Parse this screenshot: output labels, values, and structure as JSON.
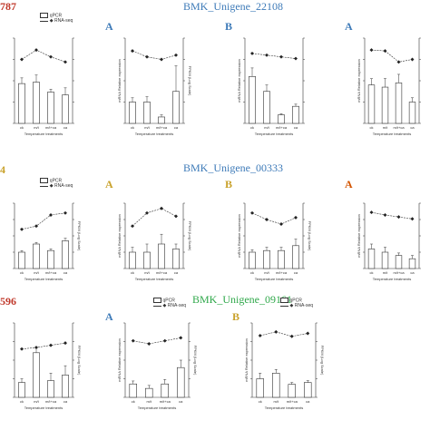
{
  "header": {
    "row1": {
      "left_fragment": "787",
      "gene": "BMK_Unigene_22108"
    },
    "row2": {
      "left_fragment": "4",
      "gene": "BMK_Unigene_00333"
    },
    "row3": {
      "left_fragment": "596",
      "gene": "BMK_Unigene_09161"
    }
  },
  "colors": {
    "red_label": "#c0392b",
    "blue_title": "#3d7ab8",
    "green_title": "#2fa84a",
    "gold_label": "#c9a22c",
    "orange_label": "#d35400"
  },
  "common": {
    "legend_bar": "qPCR",
    "legend_line": "RNA-seq",
    "ylabel_left": "mRNA Relative expression",
    "ylabel_right": "FPKM (Log Scale)",
    "xlabel": "Temperature treatments"
  },
  "chart_data": [
    {
      "id": "r1p1",
      "type": "bar",
      "letter": "",
      "show_legend": true,
      "show_left_label": false,
      "show_right_label": false,
      "categories": [
        "ck",
        "m/t",
        "m/t+ca",
        "ca"
      ],
      "series": [
        {
          "name": "qPCR",
          "kind": "bar",
          "values": [
            1.4,
            1.45,
            1.1,
            1.0
          ],
          "errors": [
            0.2,
            0.25,
            0.1,
            0.25
          ]
        },
        {
          "name": "RNA-seq",
          "kind": "line",
          "values": [
            7.5,
            8.6,
            7.8,
            7.2
          ]
        }
      ],
      "ylim": [
        0,
        3
      ],
      "y2lim": [
        0,
        10
      ]
    },
    {
      "id": "r1p2",
      "type": "bar",
      "letter": "A",
      "show_legend": false,
      "show_left_label": true,
      "show_right_label": true,
      "categories": [
        "ck",
        "m/t",
        "m/t+ca",
        "ca"
      ],
      "series": [
        {
          "name": "qPCR",
          "kind": "bar",
          "values": [
            1.0,
            1.0,
            0.3,
            1.5
          ],
          "errors": [
            0.2,
            0.25,
            0.1,
            1.2
          ]
        },
        {
          "name": "RNA-seq",
          "kind": "line",
          "values": [
            8.5,
            7.8,
            7.5,
            8.0
          ]
        }
      ],
      "ylim": [
        0,
        4
      ],
      "y2lim": [
        0,
        10
      ]
    },
    {
      "id": "r1p3",
      "type": "bar",
      "letter": "B",
      "show_legend": false,
      "show_left_label": true,
      "show_right_label": false,
      "categories": [
        "ck",
        "m/t",
        "m/t+ca",
        "ca"
      ],
      "series": [
        {
          "name": "qPCR",
          "kind": "bar",
          "values": [
            2.2,
            1.5,
            0.4,
            0.8
          ],
          "errors": [
            0.4,
            0.3,
            0.05,
            0.1
          ]
        },
        {
          "name": "RNA-seq",
          "kind": "line",
          "values": [
            8.2,
            8.0,
            7.8,
            7.6
          ]
        }
      ],
      "ylim": [
        0,
        4
      ],
      "y2lim": [
        0,
        10
      ]
    },
    {
      "id": "r1p4",
      "type": "bar",
      "letter": "A",
      "show_legend": false,
      "show_left_label": true,
      "show_right_label": false,
      "categories": [
        "ck",
        "m/t",
        "m/t+ca",
        "ca"
      ],
      "series": [
        {
          "name": "qPCR",
          "kind": "bar",
          "values": [
            1.8,
            1.7,
            1.9,
            1.0
          ],
          "errors": [
            0.3,
            0.4,
            0.4,
            0.2
          ]
        },
        {
          "name": "RNA-seq",
          "kind": "line",
          "values": [
            8.6,
            8.5,
            7.2,
            7.5
          ]
        }
      ],
      "ylim": [
        0,
        4
      ],
      "y2lim": [
        0,
        10
      ]
    },
    {
      "id": "r2p1",
      "type": "bar",
      "letter": "",
      "show_legend": true,
      "show_left_label": false,
      "show_right_label": true,
      "categories": [
        "ck",
        "m/t",
        "m/t+ca",
        "ca"
      ],
      "series": [
        {
          "name": "qPCR",
          "kind": "bar",
          "values": [
            1.0,
            1.5,
            1.1,
            1.7
          ],
          "errors": [
            0.1,
            0.1,
            0.1,
            0.15
          ]
        },
        {
          "name": "RNA-seq",
          "kind": "line",
          "values": [
            6.0,
            6.5,
            8.2,
            8.5
          ]
        }
      ],
      "ylim": [
        0,
        4
      ],
      "y2lim": [
        0,
        10
      ]
    },
    {
      "id": "r2p2",
      "type": "bar",
      "letter": "A",
      "show_legend": false,
      "show_left_label": true,
      "show_right_label": true,
      "categories": [
        "ck",
        "m/t",
        "m/t+ca",
        "ca"
      ],
      "series": [
        {
          "name": "qPCR",
          "kind": "bar",
          "values": [
            1.0,
            1.0,
            1.5,
            1.2
          ],
          "errors": [
            0.3,
            0.5,
            0.6,
            0.3
          ]
        },
        {
          "name": "RNA-seq",
          "kind": "line",
          "values": [
            6.5,
            8.5,
            9.2,
            8.0
          ]
        }
      ],
      "ylim": [
        0,
        4
      ],
      "y2lim": [
        0,
        10
      ]
    },
    {
      "id": "r2p3",
      "type": "bar",
      "letter": "B",
      "show_legend": false,
      "show_left_label": true,
      "show_right_label": true,
      "categories": [
        "ck",
        "m/t",
        "m/t+ca",
        "ca"
      ],
      "series": [
        {
          "name": "qPCR",
          "kind": "bar",
          "values": [
            1.0,
            1.1,
            1.1,
            1.4
          ],
          "errors": [
            0.15,
            0.2,
            0.2,
            0.4
          ]
        },
        {
          "name": "RNA-seq",
          "kind": "line",
          "values": [
            8.5,
            7.5,
            6.8,
            7.8
          ]
        }
      ],
      "ylim": [
        0,
        4
      ],
      "y2lim": [
        0,
        10
      ]
    },
    {
      "id": "r2p4",
      "type": "bar",
      "letter": "A",
      "show_legend": false,
      "show_left_label": true,
      "show_right_label": false,
      "categories": [
        "ck",
        "m/t",
        "m/t+ca",
        "ca"
      ],
      "series": [
        {
          "name": "qPCR",
          "kind": "bar",
          "values": [
            1.2,
            1.0,
            0.8,
            0.6
          ],
          "errors": [
            0.3,
            0.3,
            0.15,
            0.2
          ]
        },
        {
          "name": "RNA-seq",
          "kind": "line",
          "values": [
            8.6,
            8.2,
            7.9,
            7.6
          ]
        }
      ],
      "ylim": [
        0,
        4
      ],
      "y2lim": [
        0,
        10
      ]
    },
    {
      "id": "r3p1",
      "type": "bar",
      "letter": "",
      "show_legend": false,
      "show_left_label": false,
      "show_right_label": true,
      "categories": [
        "ck",
        "m/t",
        "m/t+ca",
        "ca"
      ],
      "series": [
        {
          "name": "qPCR",
          "kind": "bar",
          "values": [
            0.8,
            2.4,
            0.9,
            1.2
          ],
          "errors": [
            0.2,
            0.3,
            0.4,
            0.5
          ]
        },
        {
          "name": "RNA-seq",
          "kind": "line",
          "values": [
            6.5,
            6.7,
            7.0,
            7.3
          ]
        }
      ],
      "ylim": [
        0,
        4
      ],
      "y2lim": [
        0,
        10
      ]
    },
    {
      "id": "r3p2",
      "type": "bar",
      "letter": "A",
      "show_legend": true,
      "show_left_label": true,
      "show_right_label": true,
      "categories": [
        "ck",
        "m/t",
        "m/t+ca",
        "ca"
      ],
      "series": [
        {
          "name": "qPCR",
          "kind": "bar",
          "values": [
            0.9,
            0.6,
            0.9,
            2.0
          ],
          "errors": [
            0.2,
            0.2,
            0.3,
            0.5
          ]
        },
        {
          "name": "RNA-seq",
          "kind": "line",
          "values": [
            7.6,
            7.2,
            7.6,
            8.0
          ]
        }
      ],
      "ylim": [
        0,
        5
      ],
      "y2lim": [
        0,
        10
      ]
    },
    {
      "id": "r3p3",
      "type": "bar",
      "letter": "B",
      "show_legend": true,
      "show_left_label": true,
      "show_right_label": true,
      "categories": [
        "ck",
        "m/t",
        "m/t+ca",
        "ca"
      ],
      "series": [
        {
          "name": "qPCR",
          "kind": "bar",
          "values": [
            1.0,
            1.3,
            0.7,
            0.8
          ],
          "errors": [
            0.3,
            0.2,
            0.1,
            0.1
          ]
        },
        {
          "name": "RNA-seq",
          "kind": "line",
          "values": [
            8.3,
            8.8,
            8.2,
            8.6
          ]
        }
      ],
      "ylim": [
        0,
        4
      ],
      "y2lim": [
        0,
        10
      ]
    }
  ]
}
